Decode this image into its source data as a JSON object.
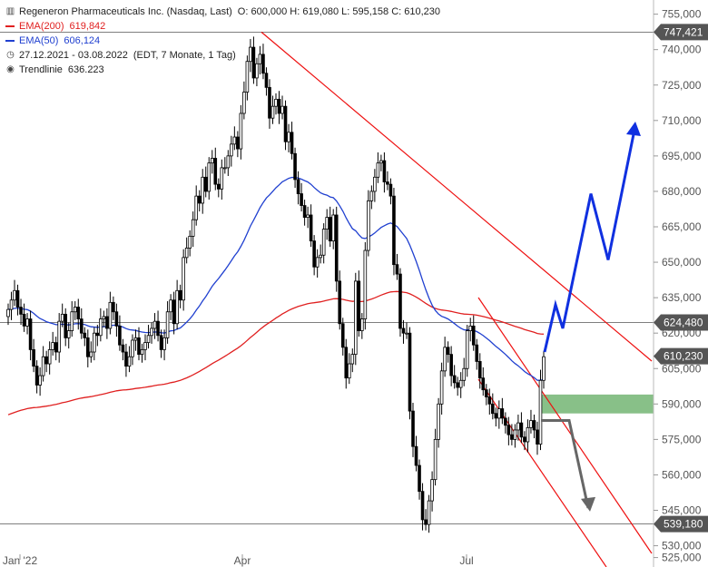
{
  "legend": {
    "title": "Regeneron Pharmaceuticals Inc. (Nasdaq, Last)",
    "ohlc": "O: 600,000   H: 619,080   L: 595,158   C: 610,230",
    "ema200_label": "EMA(200)",
    "ema200_value": "619,842",
    "ema50_label": "EMA(50)",
    "ema50_value": "606,124",
    "range": "27.12.2021 - 03.08.2022",
    "range_info": "(EDT, 7 Monate, 1 Tag)",
    "trend_label": "Trendlinie",
    "trend_value": "636.223"
  },
  "colors": {
    "ema200": "#e02020",
    "ema50": "#2040d0",
    "candle": "#000000",
    "channel": "#ee1010",
    "bull_arrow": "#1030e0",
    "bear_arrow": "#666666",
    "zone": "#88c088",
    "badge": "#555555"
  },
  "chart_data": {
    "type": "candlestick",
    "x_tick_labels": [
      "Jan '22",
      "Apr",
      "Jul"
    ],
    "y_tick_labels": [
      "755,000",
      "740,000",
      "725,000",
      "710,000",
      "695,000",
      "680,000",
      "665,000",
      "650,000",
      "635,000",
      "620,000",
      "605,000",
      "590,000",
      "575,000",
      "560,000",
      "545,000",
      "530,000",
      "525,000"
    ],
    "y_ticks": [
      755,
      740,
      725,
      710,
      695,
      680,
      665,
      650,
      635,
      620,
      605,
      590,
      575,
      560,
      545,
      530,
      525
    ],
    "ylim": [
      521,
      761
    ],
    "badges": [
      "747,421",
      "624,480",
      "610,230",
      "539,180"
    ],
    "levels": [
      747.421,
      624.48,
      539.18
    ],
    "last_close": 610.23,
    "candles_close": [
      630,
      634,
      638,
      631,
      628,
      623,
      626,
      613,
      606,
      598,
      602,
      610,
      607,
      613,
      616,
      612,
      625,
      628,
      618,
      621,
      629,
      631,
      626,
      620,
      618,
      610,
      612,
      620,
      619,
      626,
      627,
      622,
      633,
      629,
      623,
      615,
      612,
      606,
      610,
      617,
      618,
      611,
      613,
      616,
      619,
      622,
      625,
      619,
      613,
      618,
      629,
      634,
      624,
      638,
      634,
      652,
      656,
      661,
      668,
      678,
      675,
      686,
      680,
      692,
      694,
      683,
      681,
      690,
      690,
      695,
      700,
      703,
      698,
      713,
      722,
      735,
      741,
      728,
      734,
      738,
      730,
      724,
      711,
      716,
      719,
      713,
      716,
      701,
      705,
      696,
      685,
      679,
      674,
      669,
      670,
      659,
      648,
      652,
      653,
      664,
      669,
      659,
      670,
      642,
      624,
      614,
      601,
      607,
      611,
      642,
      621,
      626,
      655,
      676,
      680,
      686,
      692,
      693,
      684,
      683,
      678,
      649,
      645,
      622,
      620,
      620,
      587,
      572,
      564,
      553,
      541,
      539,
      549,
      558,
      575,
      590,
      604,
      614,
      611,
      602,
      599,
      597,
      600,
      605,
      621,
      623,
      615,
      608,
      601,
      596,
      593,
      590,
      586,
      584,
      588,
      584,
      581,
      577,
      575,
      579,
      582,
      576,
      574,
      580,
      583,
      579,
      573,
      600,
      610
    ]
  },
  "projections": {
    "bull_target": 708,
    "bear_target": 546,
    "zone_top": 594,
    "zone_bottom": 586
  }
}
